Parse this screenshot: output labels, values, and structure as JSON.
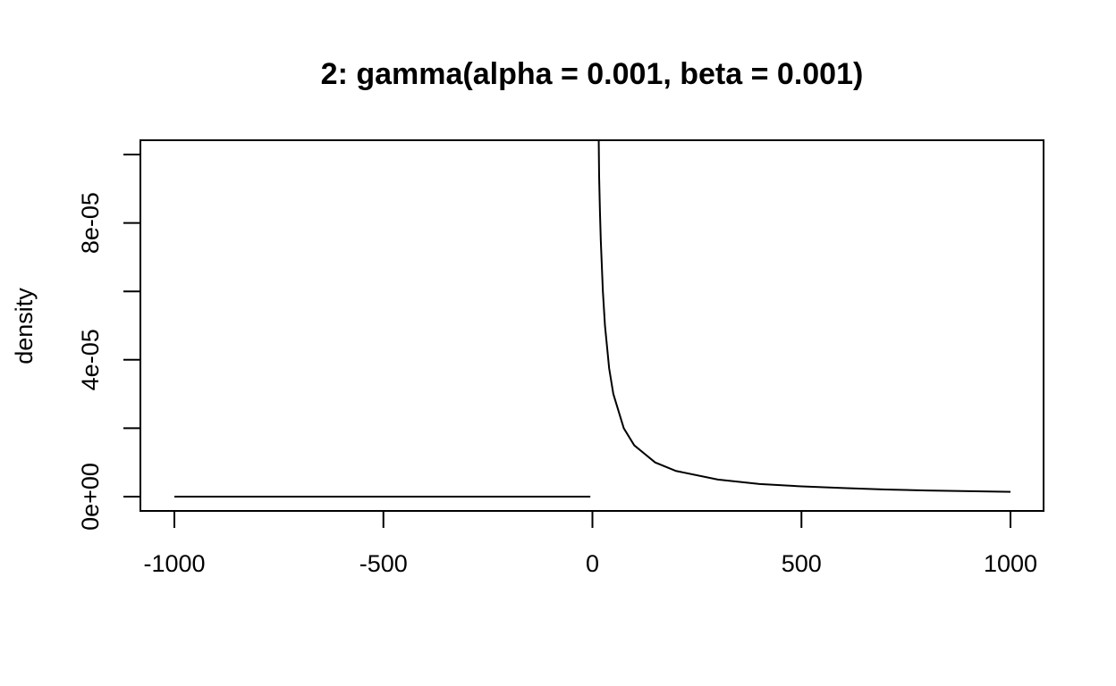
{
  "chart_data": {
    "type": "line",
    "title": "2: gamma(alpha = 0.001, beta = 0.001)",
    "xlabel": "",
    "ylabel": "density",
    "xlim": [
      -1000,
      1000
    ],
    "ylim": [
      0,
      0.0001
    ],
    "x_ticks": [
      {
        "value": -1000,
        "label": "-1000"
      },
      {
        "value": -500,
        "label": "-500"
      },
      {
        "value": 0,
        "label": "0"
      },
      {
        "value": 500,
        "label": "500"
      },
      {
        "value": 1000,
        "label": "1000"
      }
    ],
    "y_ticks": [
      {
        "value": 0,
        "label": "0e+00"
      },
      {
        "value": 2e-05,
        "label": ""
      },
      {
        "value": 4e-05,
        "label": "4e-05"
      },
      {
        "value": 6e-05,
        "label": ""
      },
      {
        "value": 8e-05,
        "label": "8e-05"
      },
      {
        "value": 0.0001,
        "label": ""
      }
    ],
    "series": [
      {
        "x": [
          -1000,
          -5,
          15,
          16,
          18,
          20,
          25,
          30,
          40,
          50,
          75,
          100,
          150,
          200,
          300,
          400,
          500,
          600,
          700,
          800,
          900,
          1000
        ],
        "y": [
          0,
          0,
          0.000105,
          9.37e-05,
          8.33e-05,
          7.49e-05,
          6e-05,
          5e-05,
          3.75e-05,
          3e-05,
          2e-05,
          1.5e-05,
          1e-05,
          7.5e-06,
          5e-06,
          3.7e-06,
          3e-06,
          2.5e-06,
          2.1e-06,
          1.8e-06,
          1.6e-06,
          1.4e-06
        ]
      }
    ],
    "grid": false,
    "legend": "none"
  }
}
